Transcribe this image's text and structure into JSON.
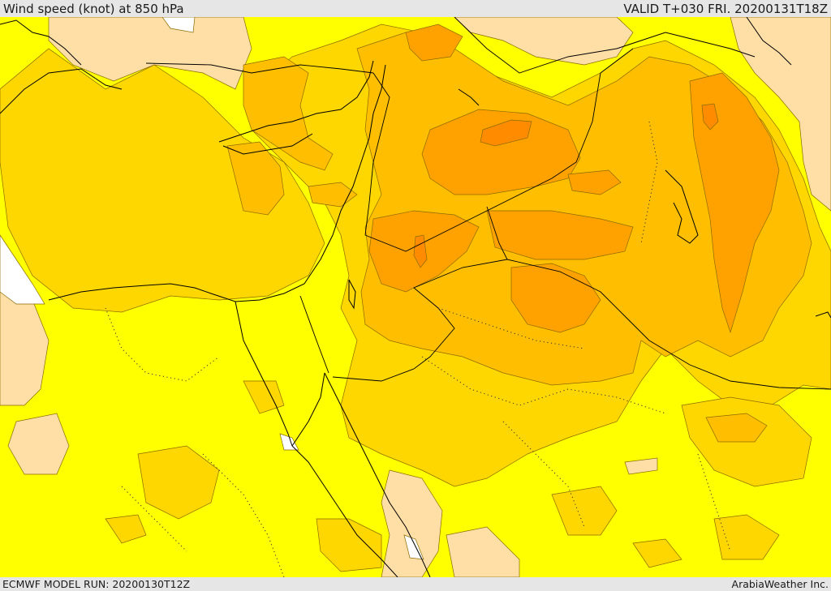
{
  "header": {
    "title": "Wind speed (knot) at 850 hPa",
    "valid": "VALID T+030 FRI. 20200131T18Z"
  },
  "footer": {
    "model_run": "ECMWF MODEL RUN: 20200130T12Z",
    "credit": "ArabiaWeather Inc."
  },
  "colors": {
    "band_calm": "#ffffff",
    "band_light": "#ffdfa6",
    "band_1": "#ffff00",
    "band_2": "#ffd700",
    "band_3": "#ffbf00",
    "band_4": "#ffa200",
    "band_5": "#ff8c00"
  }
}
